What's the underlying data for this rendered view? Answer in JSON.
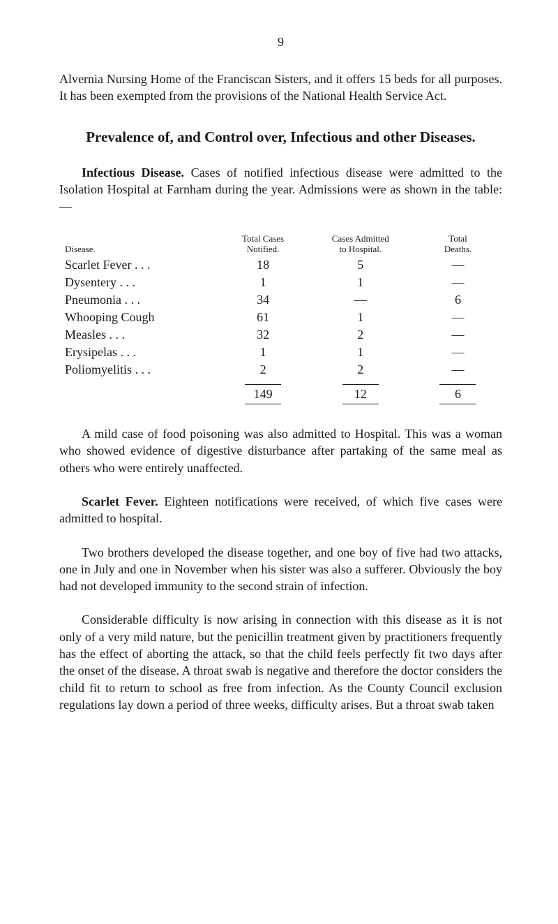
{
  "page_number": "9",
  "intro_paragraph": "Alvernia Nursing Home of the Franciscan Sisters, and it offers 15 beds for all purposes. It has been exempted from the provisions of the National Health Service Act.",
  "section_title": "Prevalence of, and Control over, Infectious and other Diseases.",
  "infectious": {
    "heading": "Infectious Disease.",
    "text": "Cases of notified infectious disease were admitted to the Isolation Hospital at Farnham during the year. Admissions were as shown in the table:—"
  },
  "table": {
    "headers": {
      "disease": "Disease.",
      "notified_l1": "Total Cases",
      "notified_l2": "Notified.",
      "admitted_l1": "Cases Admitted",
      "admitted_l2": "to Hospital.",
      "deaths_l1": "Total",
      "deaths_l2": "Deaths."
    },
    "rows": [
      {
        "disease": "Scarlet Fever",
        "dots": ". . .",
        "notified": "18",
        "admitted": "5",
        "deaths": "—"
      },
      {
        "disease": "Dysentery",
        "dots": ". . .",
        "notified": "1",
        "admitted": "1",
        "deaths": "—"
      },
      {
        "disease": "Pneumonia",
        "dots": ". . .",
        "notified": "34",
        "admitted": "—",
        "deaths": "6"
      },
      {
        "disease": "Whooping Cough",
        "dots": "",
        "notified": "61",
        "admitted": "1",
        "deaths": "—"
      },
      {
        "disease": "Measles",
        "dots": ". . .",
        "notified": "32",
        "admitted": "2",
        "deaths": "—"
      },
      {
        "disease": "Erysipelas",
        "dots": ". . .",
        "notified": "1",
        "admitted": "1",
        "deaths": "—"
      },
      {
        "disease": "Poliomyelitis",
        "dots": ". . .",
        "notified": "2",
        "admitted": "2",
        "deaths": "—"
      }
    ],
    "totals": {
      "notified": "149",
      "admitted": "12",
      "deaths": "6"
    }
  },
  "mild_case_paragraph": "A mild case of food poisoning was also admitted to Hospital. This was a woman who showed evidence of digestive disturbance after partaking of the same meal as others who were entirely unaffected.",
  "scarlet_fever": {
    "heading": "Scarlet Fever.",
    "text": "Eighteen notifications were received, of which five cases were admitted to hospital."
  },
  "two_brothers_paragraph": "Two brothers developed the disease together, and one boy of five had two attacks, one in July and one in November when his sister was also a sufferer. Obviously the boy had not developed immunity to the second strain of infection.",
  "considerable_paragraph": "Considerable difficulty is now arising in connection with this disease as it is not only of a very mild nature, but the penicillin treatment given by practitioners frequently has the effect of aborting the attack, so that the child feels perfectly fit two days after the onset of the disease. A throat swab is negative and therefore the doctor considers the child fit to return to school as free from infection. As the County Council exclusion regulations lay down a period of three weeks, difficulty arises. But a throat swab taken"
}
